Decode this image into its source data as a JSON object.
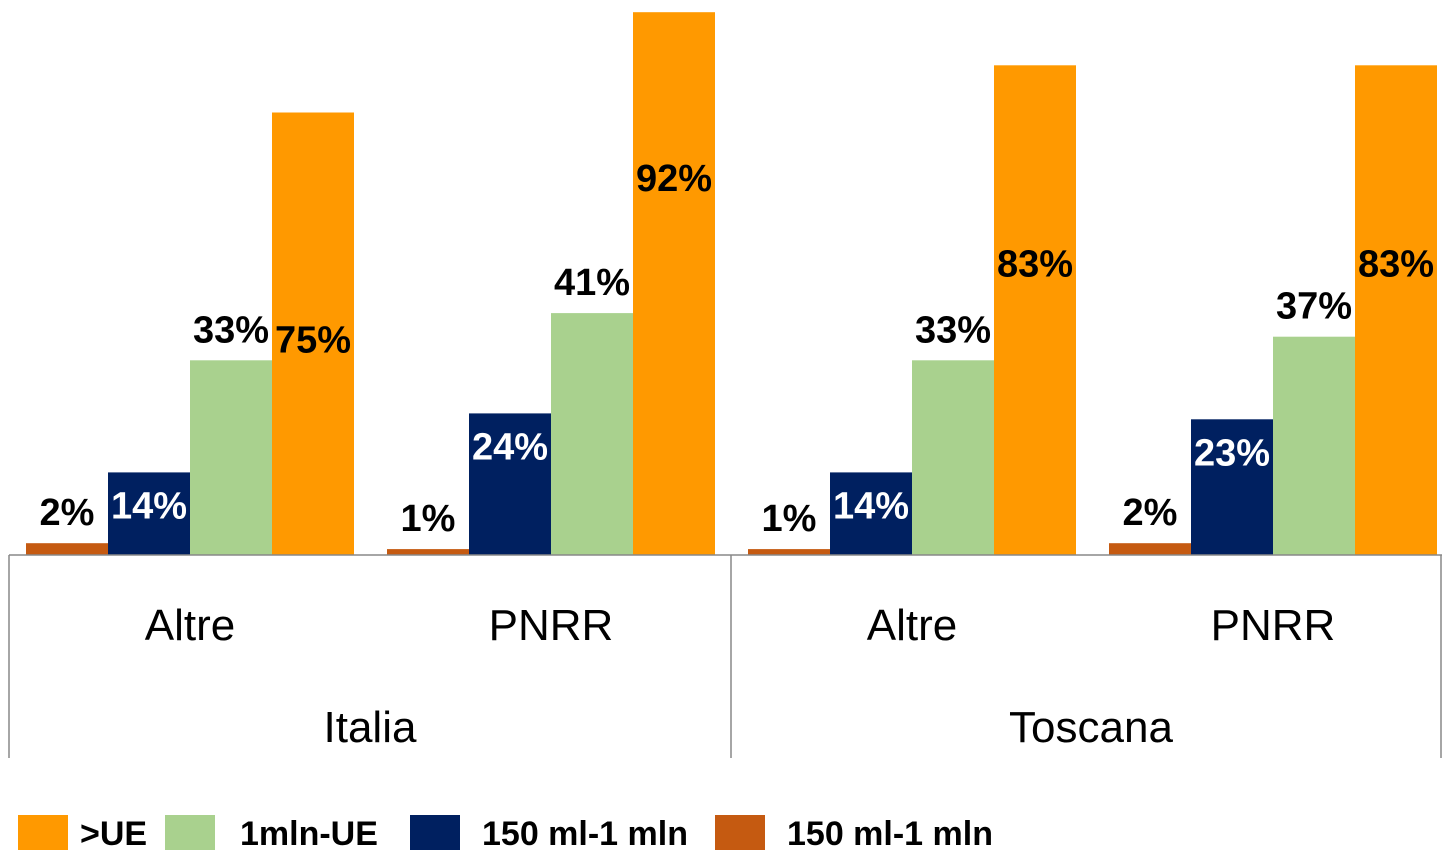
{
  "chart_data": {
    "type": "bar",
    "title": "",
    "xlabel": "",
    "ylabel": "",
    "ylim": [
      0,
      100
    ],
    "grid": false,
    "legend_position": "bottom",
    "categories": [
      "Altre",
      "PNRR",
      "Altre",
      "PNRR"
    ],
    "groups": [
      {
        "label": "Italia",
        "categories": [
          "Altre",
          "PNRR"
        ]
      },
      {
        "label": "Toscana",
        "categories": [
          "Altre",
          "PNRR"
        ]
      }
    ],
    "series": [
      {
        "name": "150 ml-1 mln",
        "color": "#c55a11",
        "label_color": "#000000",
        "values": [
          2,
          1,
          1,
          2
        ],
        "labels": [
          "2%",
          "1%",
          "1%",
          "2%"
        ]
      },
      {
        "name": "150 ml-1 mln",
        "color": "#002060",
        "label_color": "#ffffff",
        "values": [
          14,
          24,
          14,
          23
        ],
        "labels": [
          "14%",
          "24%",
          "14%",
          "23%"
        ]
      },
      {
        "name": "1mln-UE",
        "color": "#a9d18e",
        "label_color": "#000000",
        "values": [
          33,
          41,
          33,
          37
        ],
        "labels": [
          "33%",
          "41%",
          "33%",
          "37%"
        ]
      },
      {
        "name": ">UE",
        "color": "#ff9900",
        "label_color": "#000000",
        "values": [
          75,
          92,
          83,
          83
        ],
        "labels": [
          "75%",
          "92%",
          "83%",
          "83%"
        ]
      }
    ],
    "legend": [
      {
        "name": ">UE",
        "color": "#ff9900"
      },
      {
        "name": "1mln-UE",
        "color": "#a9d18e"
      },
      {
        "name": "150 ml-1 mln",
        "color": "#002060"
      },
      {
        "name": "150 ml-1 mln",
        "color": "#c55a11"
      }
    ]
  }
}
